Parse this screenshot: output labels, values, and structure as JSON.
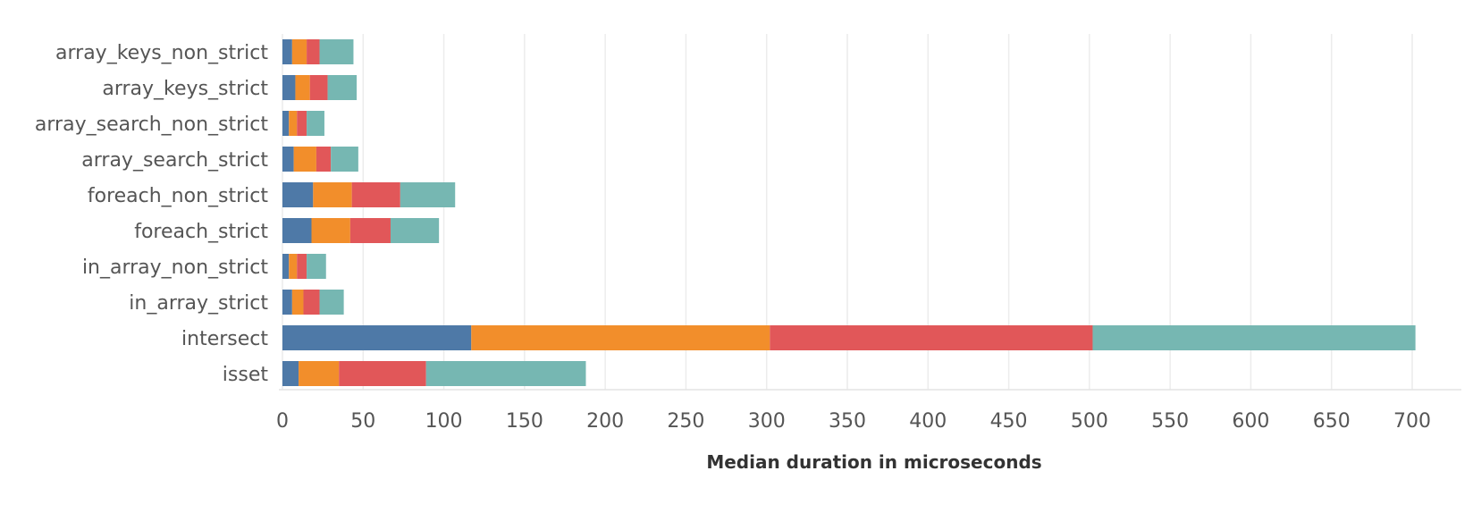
{
  "chart_data": {
    "type": "bar",
    "orientation": "horizontal",
    "stacked": true,
    "title": "",
    "xlabel": "Median duration in microseconds",
    "ylabel": "",
    "xlim": [
      0,
      730
    ],
    "xticks": [
      0,
      50,
      100,
      150,
      200,
      250,
      300,
      350,
      400,
      450,
      500,
      550,
      600,
      650,
      700
    ],
    "grid": true,
    "legend": "none",
    "categories": [
      "array_keys_non_strict",
      "array_keys_strict",
      "array_search_non_strict",
      "array_search_strict",
      "foreach_non_strict",
      "foreach_strict",
      "in_array_non_strict",
      "in_array_strict",
      "intersect",
      "isset"
    ],
    "series": [
      {
        "color": "#4e79a7",
        "values": [
          6,
          8,
          4,
          7,
          19,
          18,
          4,
          6,
          117,
          10
        ]
      },
      {
        "color": "#f28e2b",
        "values": [
          9,
          9,
          5,
          14,
          24,
          24,
          5,
          7,
          185,
          25
        ]
      },
      {
        "color": "#e15759",
        "values": [
          8,
          11,
          6,
          9,
          30,
          25,
          6,
          10,
          200,
          54
        ]
      },
      {
        "color": "#76b7b2",
        "values": [
          21,
          18,
          11,
          17,
          34,
          30,
          12,
          15,
          200,
          99
        ]
      }
    ]
  }
}
